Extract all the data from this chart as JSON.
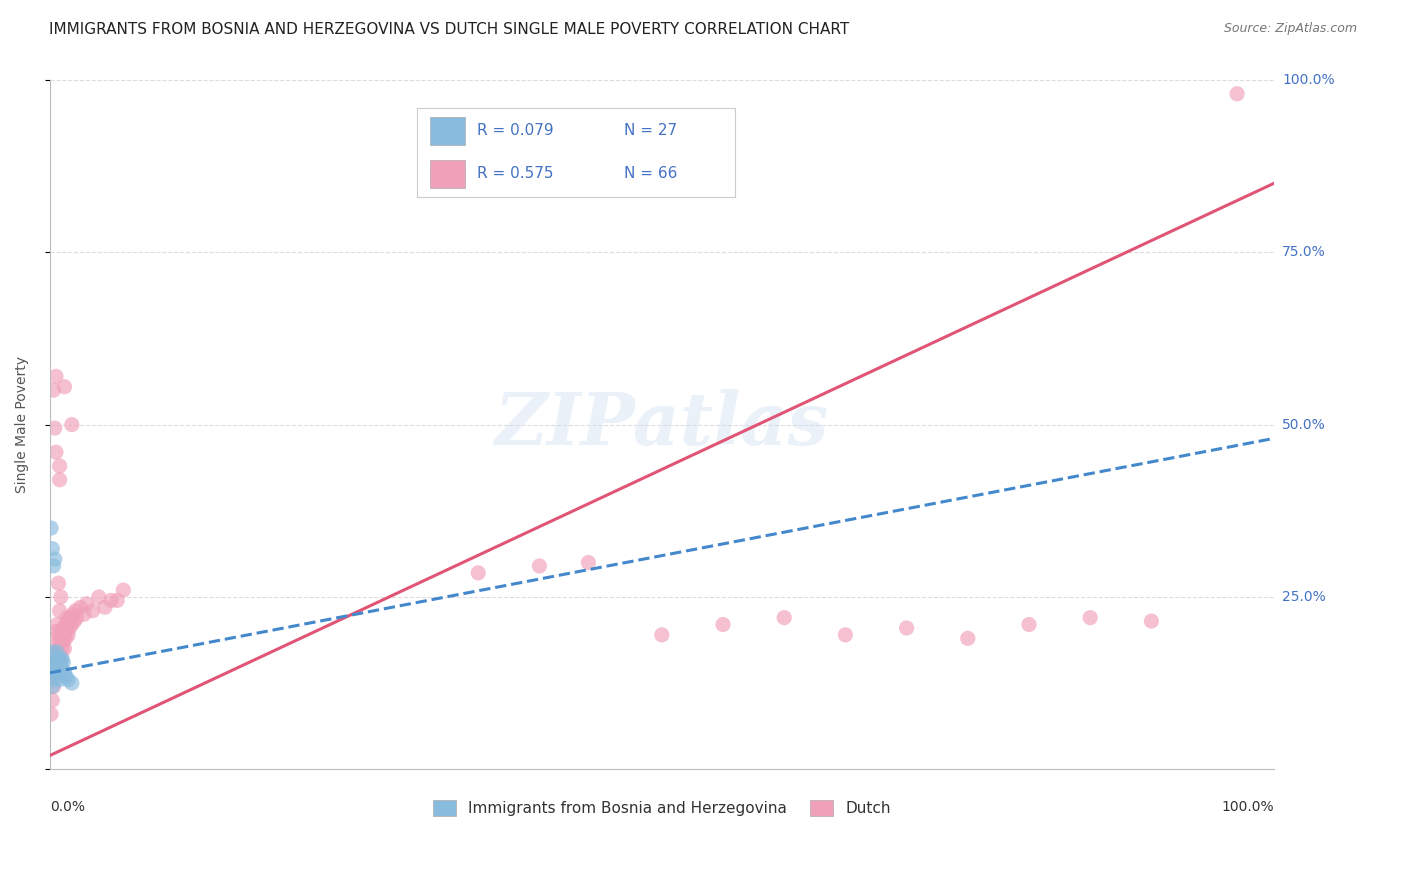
{
  "title": "IMMIGRANTS FROM BOSNIA AND HERZEGOVINA VS DUTCH SINGLE MALE POVERTY CORRELATION CHART",
  "source": "Source: ZipAtlas.com",
  "ylabel": "Single Male Poverty",
  "watermark": "ZIPatlas",
  "legend_label1": "Immigrants from Bosnia and Herzegovina",
  "legend_label2": "Dutch",
  "blue_color": "#88bbdd",
  "pink_color": "#f0a0b8",
  "blue_line_color": "#4488cc",
  "pink_line_color": "#e05575",
  "blue_scatter": [
    [
      0.001,
      0.14
    ],
    [
      0.002,
      0.155
    ],
    [
      0.002,
      0.12
    ],
    [
      0.003,
      0.17
    ],
    [
      0.003,
      0.14
    ],
    [
      0.004,
      0.155
    ],
    [
      0.004,
      0.13
    ],
    [
      0.005,
      0.16
    ],
    [
      0.005,
      0.145
    ],
    [
      0.006,
      0.15
    ],
    [
      0.006,
      0.17
    ],
    [
      0.007,
      0.155
    ],
    [
      0.007,
      0.14
    ],
    [
      0.008,
      0.16
    ],
    [
      0.008,
      0.13
    ],
    [
      0.009,
      0.155
    ],
    [
      0.01,
      0.145
    ],
    [
      0.01,
      0.16
    ],
    [
      0.011,
      0.155
    ],
    [
      0.012,
      0.14
    ],
    [
      0.013,
      0.135
    ],
    [
      0.015,
      0.13
    ],
    [
      0.018,
      0.125
    ],
    [
      0.002,
      0.32
    ],
    [
      0.003,
      0.295
    ],
    [
      0.001,
      0.35
    ],
    [
      0.004,
      0.305
    ]
  ],
  "pink_scatter": [
    [
      0.001,
      0.08
    ],
    [
      0.002,
      0.1
    ],
    [
      0.002,
      0.135
    ],
    [
      0.003,
      0.12
    ],
    [
      0.003,
      0.15
    ],
    [
      0.004,
      0.18
    ],
    [
      0.004,
      0.14
    ],
    [
      0.005,
      0.16
    ],
    [
      0.005,
      0.2
    ],
    [
      0.006,
      0.17
    ],
    [
      0.006,
      0.21
    ],
    [
      0.007,
      0.175
    ],
    [
      0.007,
      0.195
    ],
    [
      0.008,
      0.185
    ],
    [
      0.008,
      0.155
    ],
    [
      0.009,
      0.2
    ],
    [
      0.009,
      0.165
    ],
    [
      0.01,
      0.19
    ],
    [
      0.01,
      0.175
    ],
    [
      0.011,
      0.205
    ],
    [
      0.011,
      0.185
    ],
    [
      0.012,
      0.195
    ],
    [
      0.012,
      0.175
    ],
    [
      0.013,
      0.21
    ],
    [
      0.013,
      0.19
    ],
    [
      0.014,
      0.2
    ],
    [
      0.014,
      0.22
    ],
    [
      0.015,
      0.195
    ],
    [
      0.015,
      0.215
    ],
    [
      0.016,
      0.205
    ],
    [
      0.017,
      0.22
    ],
    [
      0.018,
      0.21
    ],
    [
      0.019,
      0.225
    ],
    [
      0.02,
      0.215
    ],
    [
      0.021,
      0.23
    ],
    [
      0.022,
      0.22
    ],
    [
      0.025,
      0.235
    ],
    [
      0.028,
      0.225
    ],
    [
      0.03,
      0.24
    ],
    [
      0.035,
      0.23
    ],
    [
      0.04,
      0.25
    ],
    [
      0.045,
      0.235
    ],
    [
      0.05,
      0.245
    ],
    [
      0.055,
      0.245
    ],
    [
      0.06,
      0.26
    ],
    [
      0.003,
      0.55
    ],
    [
      0.004,
      0.495
    ],
    [
      0.005,
      0.57
    ],
    [
      0.008,
      0.44
    ],
    [
      0.012,
      0.555
    ],
    [
      0.018,
      0.5
    ],
    [
      0.005,
      0.46
    ],
    [
      0.008,
      0.42
    ],
    [
      0.35,
      0.285
    ],
    [
      0.4,
      0.295
    ],
    [
      0.44,
      0.3
    ],
    [
      0.5,
      0.195
    ],
    [
      0.55,
      0.21
    ],
    [
      0.6,
      0.22
    ],
    [
      0.65,
      0.195
    ],
    [
      0.7,
      0.205
    ],
    [
      0.75,
      0.19
    ],
    [
      0.8,
      0.21
    ],
    [
      0.85,
      0.22
    ],
    [
      0.9,
      0.215
    ],
    [
      0.97,
      0.98
    ],
    [
      0.007,
      0.27
    ],
    [
      0.008,
      0.23
    ],
    [
      0.009,
      0.25
    ]
  ],
  "pink_line": [
    0.0,
    1.0,
    0.02,
    0.85
  ],
  "blue_line": [
    0.0,
    1.0,
    0.14,
    0.48
  ],
  "xlim": [
    0.0,
    1.0
  ],
  "ylim": [
    0.0,
    1.0
  ],
  "yticks": [
    0.0,
    0.25,
    0.5,
    0.75,
    1.0
  ],
  "grid_color": "#dddddd",
  "background_color": "#ffffff",
  "title_fontsize": 11,
  "right_label_color": "#4472c4",
  "legend_text_color": "#4472c4"
}
